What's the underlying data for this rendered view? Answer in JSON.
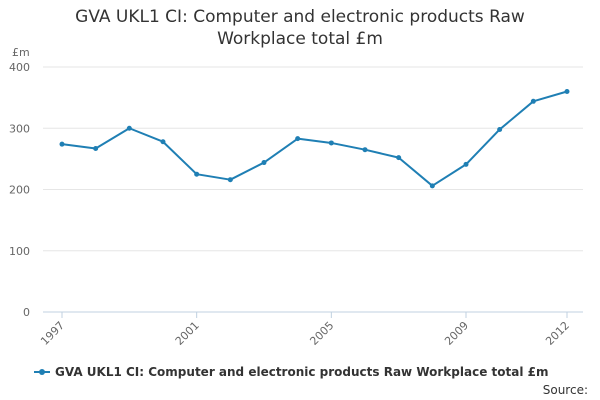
{
  "chart_data": {
    "type": "line",
    "title": [
      "GVA UKL1 CI: Computer and electronic products Raw",
      "Workplace total £m"
    ],
    "unit_label": "£m",
    "x": [
      1997,
      1998,
      1999,
      2000,
      2001,
      2002,
      2003,
      2004,
      2005,
      2006,
      2007,
      2008,
      2009,
      2010,
      2011,
      2012
    ],
    "x_tick_labels": [
      1997,
      2001,
      2005,
      2009,
      2012
    ],
    "ylim": [
      0,
      400
    ],
    "y_ticks": [
      0,
      100,
      200,
      300,
      400
    ],
    "grid": true,
    "legend_position": "bottom-left",
    "series": [
      {
        "name": "GVA UKL1 CI: Computer and electronic products Raw Workplace total £m",
        "color": "#1f7fb4",
        "values": [
          274,
          267,
          300,
          278,
          225,
          216,
          244,
          283,
          276,
          265,
          252,
          206,
          241,
          298,
          344,
          360
        ]
      }
    ]
  },
  "legend": {
    "label": "GVA UKL1 CI: Computer and electronic products Raw Workplace total £m"
  },
  "source_label": "Source:"
}
